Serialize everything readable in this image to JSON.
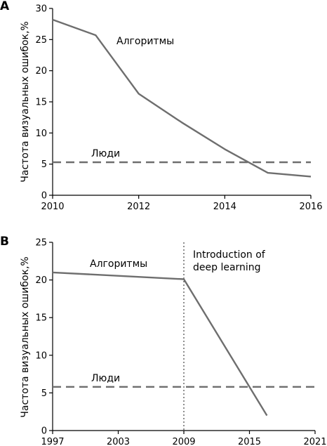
{
  "chart_data": [
    {
      "type": "line",
      "panel_label": "A",
      "ylabel": "Частота визуальных ошибок,%",
      "xlabel": "",
      "xlim": [
        2010,
        2016
      ],
      "ylim": [
        0,
        30
      ],
      "x_ticks": [
        2010,
        2012,
        2014,
        2016
      ],
      "y_ticks": [
        0,
        5,
        10,
        15,
        20,
        25,
        30
      ],
      "grid": false,
      "series": [
        {
          "name": "Алгоритмы",
          "style": "solid",
          "color": "#6e6e6e",
          "x": [
            2010,
            2011,
            2012,
            2013,
            2014,
            2015,
            2016
          ],
          "y": [
            28.2,
            25.7,
            16.3,
            11.7,
            7.4,
            3.6,
            3.0
          ]
        },
        {
          "name": "Люди",
          "style": "dashed",
          "color": "#6e6e6e",
          "x": [
            2010,
            2016
          ],
          "y": [
            5.3,
            5.3
          ]
        }
      ],
      "annotations": []
    },
    {
      "type": "line",
      "panel_label": "B",
      "ylabel": "Частота визуальных ошибок,%",
      "xlabel": "",
      "xlim": [
        1997,
        2021
      ],
      "ylim": [
        0,
        25
      ],
      "x_ticks": [
        1997,
        2003,
        2009,
        2015,
        2021
      ],
      "y_ticks": [
        0,
        5,
        10,
        15,
        20,
        25
      ],
      "grid": false,
      "series": [
        {
          "name": "Алгоритмы",
          "style": "solid",
          "color": "#6e6e6e",
          "x": [
            1997,
            2009,
            2016.6
          ],
          "y": [
            21.0,
            20.1,
            2.0
          ]
        },
        {
          "name": "Люди",
          "style": "dashed",
          "color": "#6e6e6e",
          "x": [
            1997,
            2021
          ],
          "y": [
            5.8,
            5.8
          ]
        }
      ],
      "annotations": [
        {
          "text_lines": [
            "Introduction of",
            "deep learning"
          ],
          "vline_x": 2009
        }
      ]
    }
  ]
}
